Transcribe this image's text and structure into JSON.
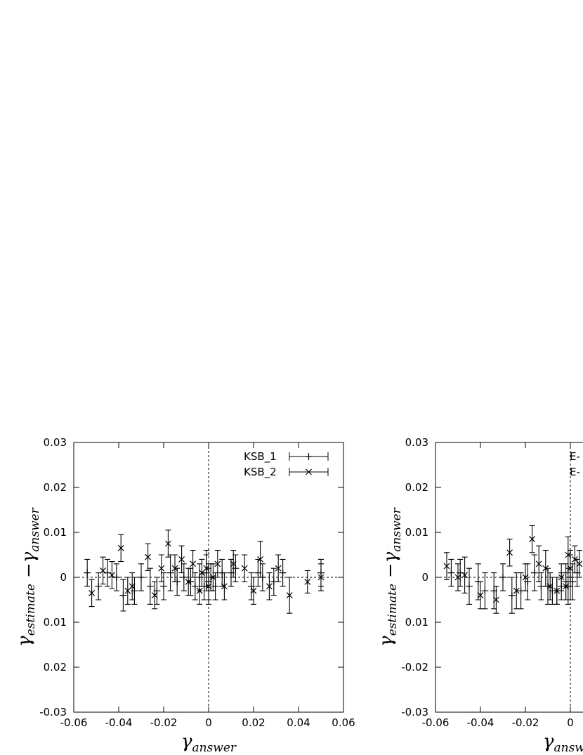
{
  "chart_data": [
    {
      "type": "errorbar",
      "xlabel": {
        "base": "γ",
        "sub": "answer"
      },
      "ylabel": [
        {
          "base": "γ",
          "sub": "estimate"
        },
        "−",
        {
          "base": "γ",
          "sub": "answer"
        }
      ],
      "xlim": [
        -0.06,
        0.06
      ],
      "ylim": [
        -0.03,
        0.03
      ],
      "xticks": [
        -0.06,
        -0.04,
        -0.02,
        0,
        0.02,
        0.04,
        0.06
      ],
      "yticks": [
        0.03,
        0.02,
        0.01,
        0,
        {
          "value": -0.01,
          "label": "0.01"
        },
        {
          "value": -0.02,
          "label": "0.02"
        },
        -0.03
      ],
      "zero_lines": true,
      "legend": "upper right",
      "series": [
        {
          "name": "KSB_1",
          "marker": "plus",
          "color": "#000000",
          "x": [
            -0.054,
            -0.049,
            -0.045,
            -0.041,
            -0.038,
            -0.033,
            -0.03,
            -0.026,
            -0.023,
            -0.02,
            -0.017,
            -0.014,
            -0.011,
            -0.008,
            -0.006,
            -0.004,
            -0.002,
            -0.001,
            0.0,
            0.001,
            0.003,
            0.006,
            0.01,
            0.012,
            0.019,
            0.022,
            0.024,
            0.029,
            0.033,
            0.05
          ],
          "values": [
            0.001,
            -0.002,
            0.001,
            0.0,
            -0.004,
            -0.003,
            0.0,
            -0.002,
            -0.003,
            -0.002,
            0.001,
            -0.001,
            0.0,
            -0.001,
            -0.002,
            0.0,
            -0.002,
            0.001,
            -0.001,
            0.0,
            -0.002,
            0.001,
            0.001,
            0.002,
            -0.002,
            0.001,
            0.0,
            -0.001,
            0.001,
            0.001
          ],
          "errors": [
            0.003,
            0.003,
            0.003,
            0.003,
            0.0035,
            0.003,
            0.003,
            0.004,
            0.003,
            0.003,
            0.004,
            0.003,
            0.003,
            0.003,
            0.003,
            0.003,
            0.003,
            0.004,
            0.004,
            0.003,
            0.003,
            0.003,
            0.003,
            0.003,
            0.003,
            0.003,
            0.003,
            0.003,
            0.003,
            0.003
          ]
        },
        {
          "name": "KSB_2",
          "marker": "cross",
          "color": "#000000",
          "x": [
            -0.052,
            -0.047,
            -0.043,
            -0.039,
            -0.036,
            -0.034,
            -0.027,
            -0.024,
            -0.021,
            -0.018,
            -0.015,
            -0.012,
            -0.009,
            -0.007,
            -0.004,
            -0.003,
            -0.001,
            0.0,
            0.002,
            0.004,
            0.007,
            0.011,
            0.016,
            0.02,
            0.023,
            0.027,
            0.031,
            0.036,
            0.044,
            0.05
          ],
          "values": [
            -0.0035,
            0.0015,
            0.0005,
            0.0065,
            -0.003,
            -0.002,
            0.0045,
            -0.004,
            0.002,
            0.0075,
            0.002,
            0.004,
            -0.001,
            0.003,
            -0.003,
            0.001,
            0.002,
            -0.002,
            0.0,
            0.003,
            -0.002,
            0.003,
            0.002,
            -0.003,
            0.004,
            -0.002,
            0.002,
            -0.004,
            -0.001,
            0.0
          ],
          "errors": [
            0.003,
            0.003,
            0.003,
            0.003,
            0.003,
            0.003,
            0.003,
            0.003,
            0.003,
            0.003,
            0.003,
            0.003,
            0.003,
            0.003,
            0.003,
            0.003,
            0.004,
            0.004,
            0.003,
            0.003,
            0.003,
            0.003,
            0.003,
            0.003,
            0.004,
            0.003,
            0.003,
            0.004,
            0.0025,
            0.003
          ]
        }
      ]
    },
    {
      "type": "errorbar",
      "xlabel": {
        "base": "γ",
        "sub": "answer"
      },
      "ylabel": [
        {
          "base": "γ",
          "sub": "estimate"
        },
        "−",
        {
          "base": "γ",
          "sub": "answer"
        }
      ],
      "xlim": [
        -0.06,
        0.06
      ],
      "ylim": [
        -0.03,
        0.03
      ],
      "xticks": [
        -0.06,
        -0.04,
        -0.02,
        0
      ],
      "yticks": [
        0.03,
        0.02,
        0.01,
        0,
        {
          "value": -0.01,
          "label": "0.01"
        },
        -0.02,
        -0.03
      ],
      "zero_lines": true,
      "legend": "upper right",
      "series": [
        {
          "name": "E-",
          "marker": "plus",
          "color": "#000000",
          "x": [
            -0.053,
            -0.049,
            -0.045,
            -0.041,
            -0.038,
            -0.034,
            -0.03,
            -0.026,
            -0.022,
            -0.019,
            -0.016,
            -0.013,
            -0.01,
            -0.008,
            -0.006,
            -0.004,
            -0.002,
            -0.001,
            0.0,
            0.001,
            0.003
          ],
          "values": [
            0.001,
            0.001,
            -0.002,
            -0.001,
            -0.003,
            -0.003,
            0.0,
            -0.004,
            -0.003,
            -0.001,
            0.001,
            -0.002,
            -0.002,
            -0.003,
            -0.003,
            -0.002,
            -0.001,
            -0.002,
            0.0,
            -0.001,
            0.001
          ],
          "errors": [
            0.003,
            0.003,
            0.004,
            0.004,
            0.004,
            0.004,
            0.003,
            0.004,
            0.004,
            0.004,
            0.004,
            0.003,
            0.004,
            0.003,
            0.003,
            0.003,
            0.004,
            0.004,
            0.005,
            0.004,
            0.003
          ]
        },
        {
          "name": "E-",
          "marker": "cross",
          "color": "#000000",
          "x": [
            -0.055,
            -0.05,
            -0.047,
            -0.04,
            -0.033,
            -0.027,
            -0.024,
            -0.02,
            -0.017,
            -0.014,
            -0.011,
            -0.009,
            -0.006,
            -0.004,
            -0.002,
            -0.001,
            0.0,
            0.002,
            0.004
          ],
          "values": [
            0.0025,
            0.0,
            0.0005,
            -0.004,
            -0.005,
            0.0055,
            -0.003,
            0.0,
            0.0085,
            0.003,
            0.002,
            -0.002,
            -0.003,
            0.0,
            -0.002,
            0.005,
            0.002,
            0.004,
            0.003
          ],
          "errors": [
            0.003,
            0.003,
            0.004,
            0.003,
            0.003,
            0.003,
            0.004,
            0.003,
            0.003,
            0.004,
            0.004,
            0.003,
            0.003,
            0.003,
            0.003,
            0.004,
            0.004,
            0.003,
            0.003
          ]
        }
      ]
    }
  ]
}
